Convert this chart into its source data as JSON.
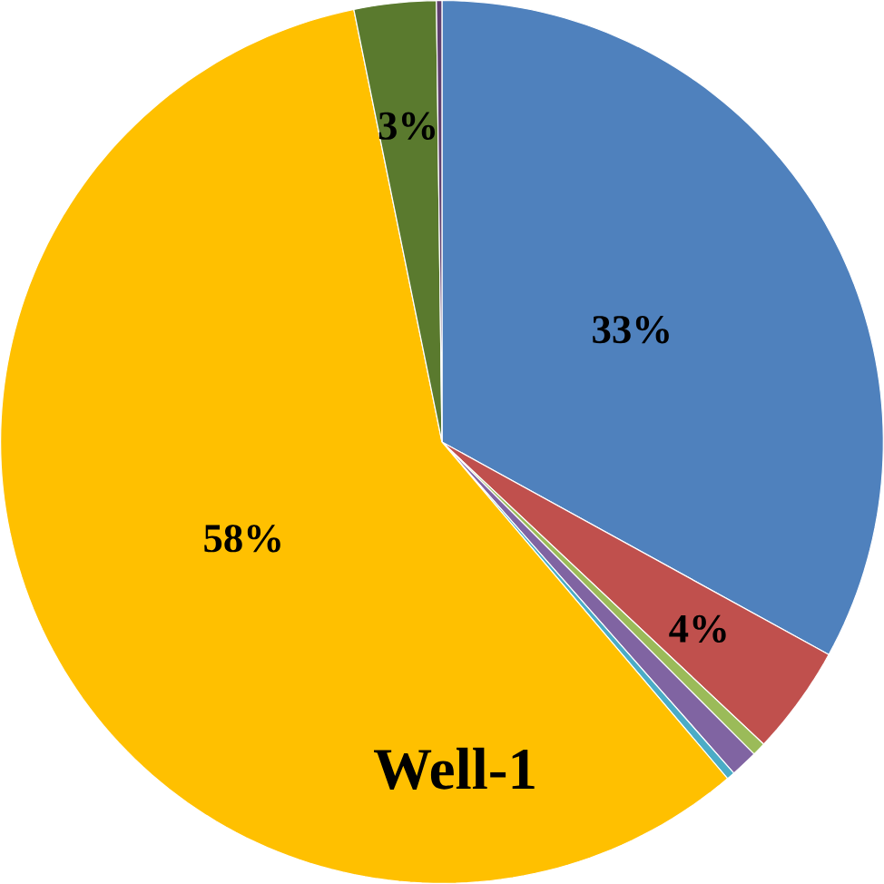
{
  "chart_data": {
    "type": "pie",
    "title": "Well-1",
    "categories": [
      null,
      null,
      null,
      null,
      null,
      null,
      null,
      null
    ],
    "values": [
      33,
      4,
      0.5,
      1,
      0.3,
      58,
      3,
      0.2
    ],
    "colors": [
      "#4f81bd",
      "#c0504d",
      "#9bbb59",
      "#8064a2",
      "#4bacc6",
      "#ffc000",
      "#5a7a2e",
      "#5f3f6f"
    ],
    "value_labels": [
      "33%",
      "4%",
      null,
      null,
      null,
      "58%",
      "3%",
      null
    ]
  }
}
